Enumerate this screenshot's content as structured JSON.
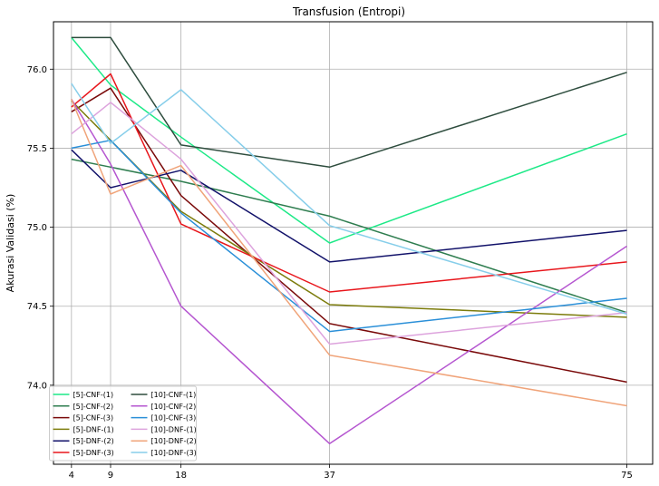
{
  "chart_data": {
    "type": "line",
    "title": "Transfusion (Entropi)",
    "xlabel": "",
    "ylabel": "Akurasi Validasi (%)",
    "x": [
      4,
      9,
      18,
      37,
      75
    ],
    "xlim": [
      1.7,
      78.3
    ],
    "ylim": [
      73.5,
      76.3
    ],
    "xticks": [
      4,
      9,
      18,
      37,
      75
    ],
    "yticks": [
      74.0,
      74.5,
      75.0,
      75.5,
      76.0
    ],
    "ytick_labels": [
      "74.0",
      "74.5",
      "75.0",
      "75.5",
      "76.0"
    ],
    "grid": true,
    "legend_position": "lower-left",
    "legend_columns": 2,
    "series": [
      {
        "name": "[5]-CNF-(1)",
        "color": "#1de987",
        "values": [
          76.2,
          75.9,
          75.57,
          74.9,
          75.59
        ]
      },
      {
        "name": "[5]-CNF-(2)",
        "color": "#2e7d4f",
        "values": [
          75.43,
          75.38,
          75.29,
          75.07,
          74.46
        ]
      },
      {
        "name": "[5]-CNF-(3)",
        "color": "#7a0a0a",
        "values": [
          75.73,
          75.88,
          75.2,
          74.39,
          74.02
        ]
      },
      {
        "name": "[5]-DNF-(1)",
        "color": "#7c7c0c",
        "values": [
          75.8,
          75.55,
          75.1,
          74.51,
          74.43
        ]
      },
      {
        "name": "[5]-DNF-(2)",
        "color": "#12126a",
        "values": [
          75.49,
          75.25,
          75.36,
          74.78,
          74.98
        ]
      },
      {
        "name": "[5]-DNF-(3)",
        "color": "#e8161c",
        "values": [
          75.76,
          75.97,
          75.02,
          74.59,
          74.78
        ]
      },
      {
        "name": "[10]-CNF-(1)",
        "color": "#2e4d3e",
        "values": [
          76.2,
          76.2,
          75.52,
          75.38,
          75.98
        ]
      },
      {
        "name": "[10]-CNF-(2)",
        "color": "#b556d0",
        "values": [
          75.81,
          75.4,
          74.5,
          73.63,
          74.88
        ]
      },
      {
        "name": "[10]-CNF-(3)",
        "color": "#2a8fd8",
        "values": [
          75.5,
          75.55,
          75.09,
          74.34,
          74.55
        ]
      },
      {
        "name": "[10]-DNF-(1)",
        "color": "#dda3dd",
        "values": [
          75.59,
          75.79,
          75.43,
          74.26,
          74.46
        ]
      },
      {
        "name": "[10]-DNF-(2)",
        "color": "#f0a47a",
        "values": [
          75.81,
          75.21,
          75.39,
          74.19,
          73.87
        ]
      },
      {
        "name": "[10]-DNF-(3)",
        "color": "#87ceea",
        "values": [
          75.91,
          75.53,
          75.87,
          75.01,
          74.45
        ]
      }
    ]
  }
}
